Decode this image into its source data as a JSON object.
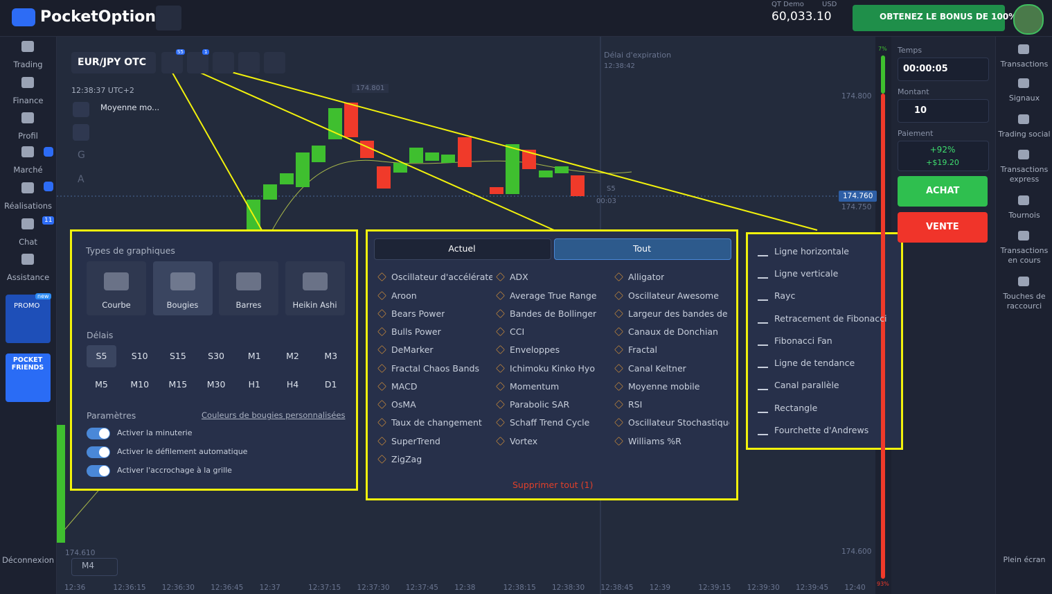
{
  "header": {
    "logo": "PocketOption",
    "account_type": "QT Demo",
    "currency": "USD",
    "balance": "60,033.10",
    "bonus_button": "OBTENEZ LE BONUS DE 100%"
  },
  "left_nav": [
    {
      "label": "Trading"
    },
    {
      "label": "Finance"
    },
    {
      "label": "Profil"
    },
    {
      "label": "Marché"
    },
    {
      "label": "Réalisations"
    },
    {
      "label": "Chat",
      "badge": 11
    },
    {
      "label": "Assistance"
    }
  ],
  "promo": {
    "label": "PROMO",
    "tag": "new"
  },
  "friends": "POCKET FRIENDS",
  "logout": "Déconnexion",
  "toolbar": {
    "asset": "EUR/JPY OTC",
    "chart_badge": "S5",
    "indicator_badge": 1,
    "clock": "12:38:37 UTC+2",
    "indicator": "Moyenne mo...",
    "side_tools": [
      "G",
      "A"
    ]
  },
  "chart": {
    "expiration_label": "Délai d'expiration",
    "expiration_time": "12:38:42",
    "top_price": "174.801",
    "price_labels": [
      "174.800",
      "174.750",
      "174.600"
    ],
    "current_price": "174.760",
    "left_price": "174.610",
    "timer_period": "S5",
    "timer": "00:03",
    "time_axis": [
      "12:36",
      "12:36:15",
      "12:36:30",
      "12:36:45",
      "12:37",
      "12:37:15",
      "12:37:30",
      "12:37:45",
      "12:38",
      "12:38:15",
      "12:38:30",
      "12:38:45",
      "12:39",
      "12:39:15",
      "12:39:30",
      "12:39:45",
      "12:40"
    ],
    "timeframe": "M4",
    "up_percent": "7%",
    "down_percent": "93%"
  },
  "trade_panel": {
    "time_label": "Temps",
    "time": "00:00:05",
    "amount_label": "Montant",
    "amount": "10",
    "payout_label": "Paiement",
    "payout_percent": "+92%",
    "payout_amount": "+$19.20",
    "buy": "ACHAT",
    "sell": "VENTE"
  },
  "right_nav": [
    "Transactions",
    "Signaux",
    "Trading social",
    "Transactions express",
    "Tournois",
    "Transactions en cours",
    "Touches de raccourci",
    "Plein écran"
  ],
  "chart_settings": {
    "types_title": "Types de graphiques",
    "types": [
      "Courbe",
      "Bougies",
      "Barres",
      "Heikin Ashi"
    ],
    "timeframes_title": "Délais",
    "timeframes": [
      "S5",
      "S10",
      "S15",
      "S30",
      "M1",
      "M2",
      "M3",
      "M5",
      "M10",
      "M15",
      "M30",
      "H1",
      "H4",
      "D1"
    ],
    "params_title": "Paramètres",
    "custom_colors": "Couleurs de bougies personnalisées",
    "toggles": [
      "Activer la minuterie",
      "Activer le défilement automatique",
      "Activer l'accrochage à la grille"
    ]
  },
  "indicators": {
    "tabs": [
      "Actuel",
      "Tout"
    ],
    "columns": [
      [
        "Oscillateur d'accélérate",
        "Aroon",
        "Bears Power",
        "Bulls Power",
        "DeMarker",
        "Fractal Chaos Bands",
        "MACD",
        "OsMA",
        "Taux de changement",
        "SuperTrend",
        "ZigZag"
      ],
      [
        "ADX",
        "Average True Range",
        "Bandes de Bollinger",
        "CCI",
        "Enveloppes",
        "Ichimoku Kinko Hyo",
        "Momentum",
        "Parabolic SAR",
        "Schaff Trend Cycle",
        "Vortex"
      ],
      [
        "Alligator",
        "Oscillateur Awesome",
        "Largeur des bandes de",
        "Canaux de Donchian",
        "Fractal",
        "Canal Keltner",
        "Moyenne mobile",
        "RSI",
        "Oscillateur Stochastique",
        "Williams %R"
      ]
    ],
    "remove_all": "Supprimer tout (1)"
  },
  "drawings": [
    "Ligne horizontale",
    "Ligne verticale",
    "Rayc",
    "Retracement de Fibonacci",
    "Fibonacci Fan",
    "Ligne de tendance",
    "Canal parallèle",
    "Rectangle",
    "Fourchette d'Andrews"
  ]
}
